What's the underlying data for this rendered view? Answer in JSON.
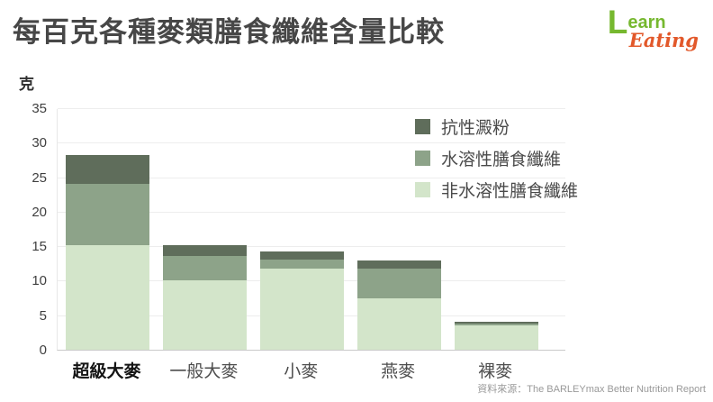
{
  "header": {
    "title": "每百克各種麥類膳食纖維含量比較"
  },
  "logo": {
    "learn_initial": "L",
    "learn_rest": "earn",
    "eating": "Eating",
    "green": "#76b82f",
    "orange": "#e2582a"
  },
  "chart_data": {
    "type": "bar",
    "stacked": true,
    "title": "每百克各種麥類膳食纖維含量比較",
    "unit_label": "克",
    "categories": [
      "超級大麥",
      "一般大麥",
      "小麥",
      "燕麥",
      "裸麥"
    ],
    "series": [
      {
        "name": "非水溶性膳食纖維",
        "color": "#d3e5ca",
        "values": [
          15.2,
          10.1,
          11.7,
          7.5,
          3.5
        ]
      },
      {
        "name": "水溶性膳食纖維",
        "color": "#8da389",
        "values": [
          8.8,
          3.5,
          1.3,
          4.2,
          0.3
        ]
      },
      {
        "name": "抗性澱粉",
        "color": "#5f6d5b",
        "values": [
          4.2,
          1.5,
          1.3,
          1.2,
          0.2
        ]
      }
    ],
    "totals": [
      28.2,
      15.1,
      14.3,
      12.9,
      4.0
    ],
    "legend_order": [
      "抗性澱粉",
      "水溶性膳食纖維",
      "非水溶性膳食纖維"
    ],
    "legend_position": "top-right-inside",
    "ylim": [
      0,
      35
    ],
    "yticks": [
      0,
      5,
      10,
      15,
      20,
      25,
      30,
      35
    ],
    "grid": true,
    "emphasized_category": "超級大麥"
  },
  "source": {
    "text": "資料來源：The BARLEYmax Better Nutrition Report"
  }
}
